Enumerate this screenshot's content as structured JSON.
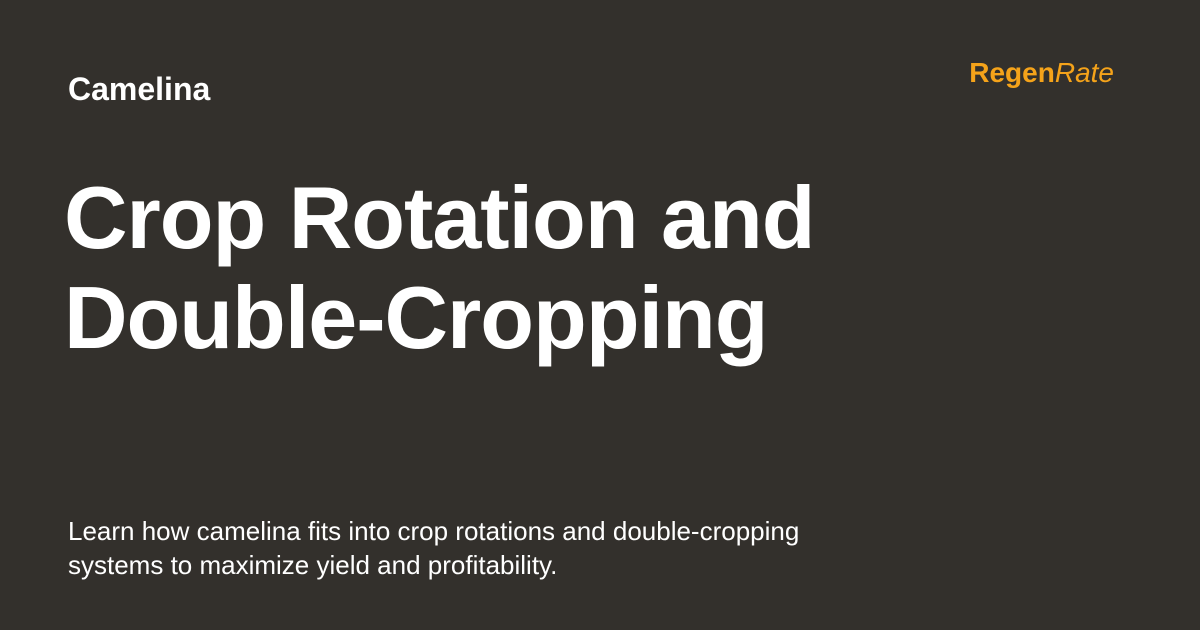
{
  "card": {
    "category": "Camelina",
    "title": "Crop Rotation and Double-Cropping",
    "description": "Learn how camelina fits into crop rotations and double-cropping systems to maximize yield and profitability."
  },
  "brand": {
    "part1": "Regen",
    "part2": "Rate",
    "accent_color": "#f5a31a"
  },
  "colors": {
    "background": "#33302c",
    "text": "#ffffff"
  }
}
